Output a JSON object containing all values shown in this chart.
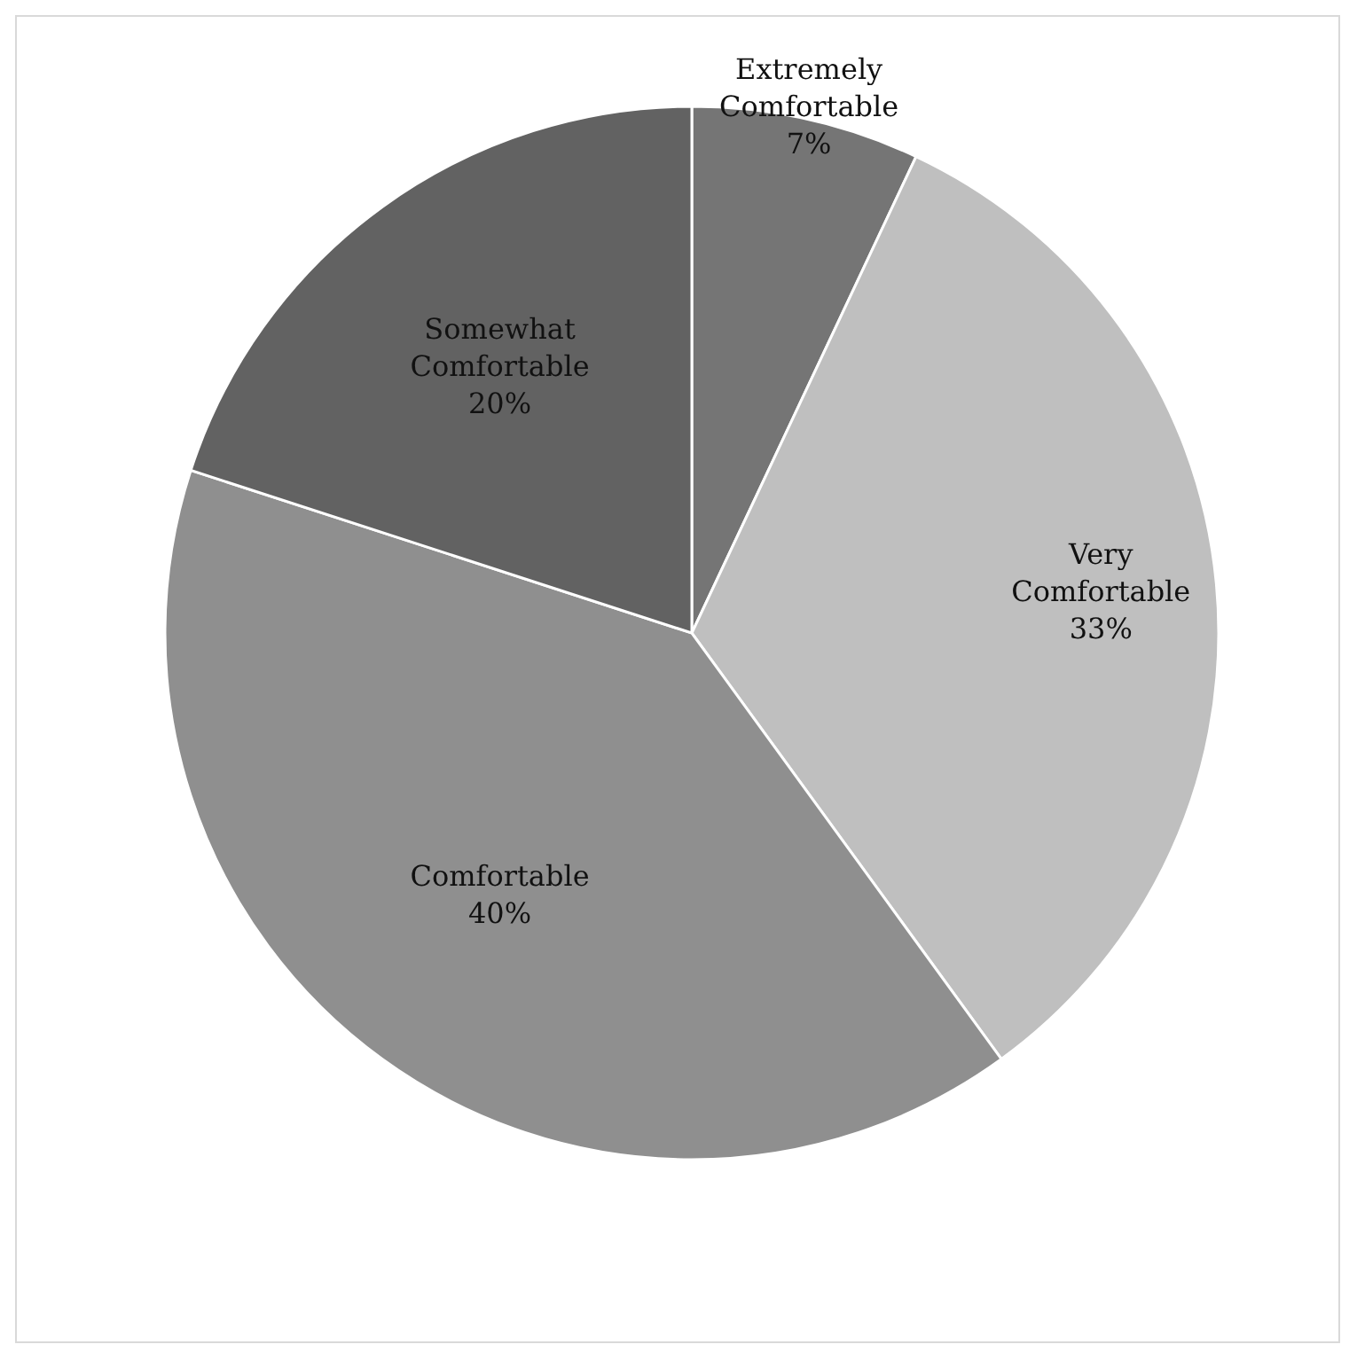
{
  "chart_data": {
    "type": "pie",
    "categories": [
      "Extremely Comfortable",
      "Very Comfortable",
      "Comfortable",
      "Somewhat Comfortable"
    ],
    "values": [
      7,
      33,
      40,
      20
    ],
    "colors": [
      "#757575",
      "#bfbfbf",
      "#8f8f8f",
      "#626262"
    ],
    "value_labels": [
      "7%",
      "33%",
      "40%",
      "20%"
    ]
  }
}
